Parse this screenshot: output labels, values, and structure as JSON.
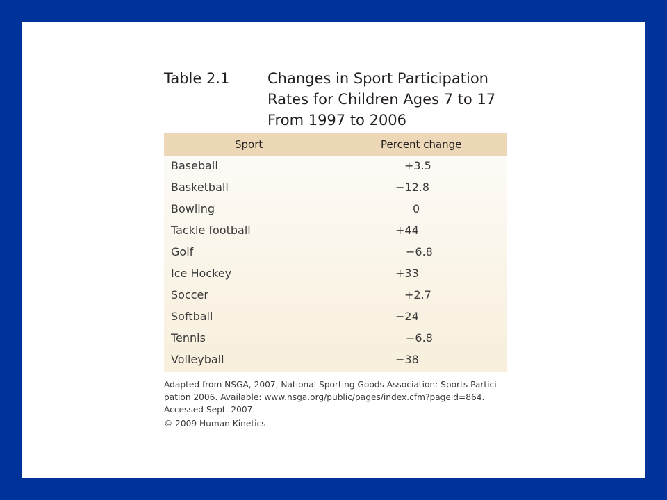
{
  "table": {
    "label": "Table 2.1",
    "title_lines": [
      "Changes in Sport Participation",
      "Rates for Children Ages 7 to 17",
      "From 1997 to 2006"
    ],
    "columns": [
      "Sport",
      "Percent change"
    ],
    "rows": [
      {
        "sport": "Baseball",
        "change": "+3.5"
      },
      {
        "sport": "Basketball",
        "change": "−12.8"
      },
      {
        "sport": "Bowling",
        "change": "0"
      },
      {
        "sport": "Tackle football",
        "change": "+44"
      },
      {
        "sport": "Golf",
        "change": "−6.8"
      },
      {
        "sport": "Ice Hockey",
        "change": "+33"
      },
      {
        "sport": "Soccer",
        "change": "+2.7"
      },
      {
        "sport": "Softball",
        "change": "−24"
      },
      {
        "sport": "Tennis",
        "change": "−6.8"
      },
      {
        "sport": "Volleyball",
        "change": "−38"
      }
    ]
  },
  "source_lines": [
    "Adapted from NSGA, 2007, National Sporting Goods Association: Sports Partici-",
    "pation 2006. Available: www.nsga.org/public/pages/index.cfm?pageid=864.",
    "Accessed Sept. 2007."
  ],
  "copyright": "© 2009 Human Kinetics",
  "colors": {
    "frame": "#003399",
    "header_band": "#ecd8b6"
  }
}
